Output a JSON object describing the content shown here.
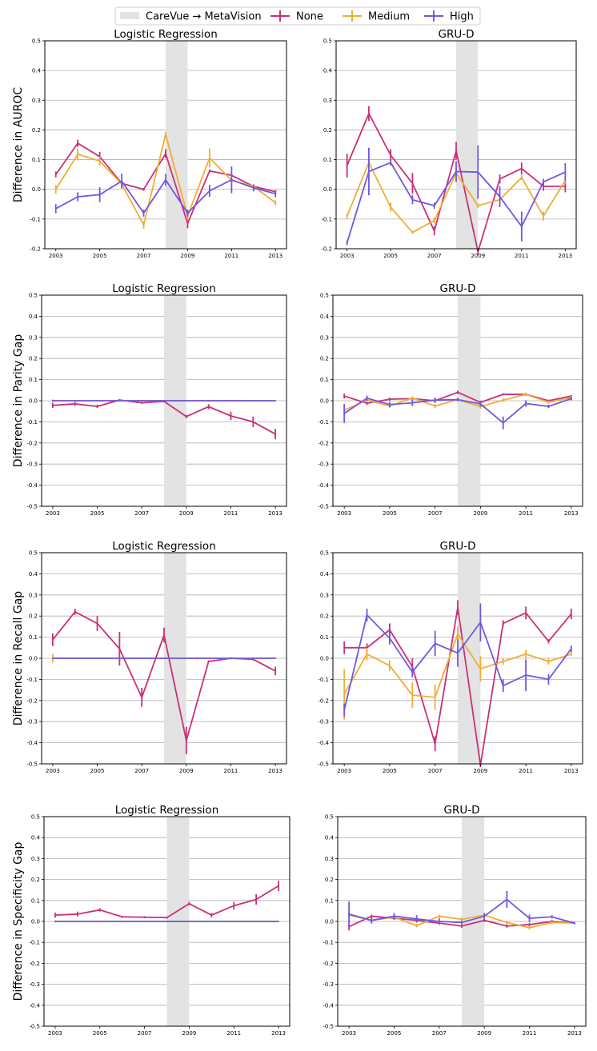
{
  "legend": {
    "items": [
      {
        "label": "CareVue → MetaVision",
        "kind": "patch",
        "color": "#e3e3e3"
      },
      {
        "label": "None",
        "kind": "line",
        "color": "#c9307a"
      },
      {
        "label": "Medium",
        "kind": "line",
        "color": "#f0ad34"
      },
      {
        "label": "High",
        "kind": "line",
        "color": "#7058e0"
      }
    ]
  },
  "row_labels": [
    "Difference in AUROC",
    "Difference in Parity Gap",
    "Difference in Recall Gap",
    "Difference in Specificity Gap"
  ],
  "colors": {
    "None": "#c9307a",
    "Medium": "#f0ad34",
    "High": "#7058e0",
    "shade": "#e3e3e3",
    "grid": "#b0b0b0"
  },
  "chart_data": [
    {
      "type": "line",
      "title": "Logistic Regression",
      "ylabel": "Difference in AUROC",
      "x": [
        2003,
        2004,
        2005,
        2006,
        2007,
        2008,
        2009,
        2010,
        2011,
        2012,
        2013
      ],
      "xticks": [
        2003,
        2005,
        2007,
        2009,
        2011,
        2013
      ],
      "yticks": [
        -0.2,
        -0.1,
        0.0,
        0.1,
        0.2,
        0.3,
        0.4,
        0.5
      ],
      "ylim": [
        -0.2,
        0.5
      ],
      "xlim": [
        2002.5,
        2013.5
      ],
      "shaded": [
        2008,
        2009
      ],
      "grid": true,
      "series": [
        {
          "name": "None",
          "values": [
            0.05,
            0.155,
            0.11,
            0.02,
            0.0,
            0.12,
            -0.115,
            0.062,
            0.047,
            0.01,
            -0.008
          ],
          "err": [
            0.01,
            0.012,
            0.016,
            0.01,
            0.005,
            0.015,
            0.016,
            0.005,
            0.006,
            0.005,
            0.005
          ]
        },
        {
          "name": "Medium",
          "values": [
            0.0,
            0.118,
            0.095,
            0.018,
            -0.12,
            0.185,
            -0.09,
            0.106,
            0.03,
            0.01,
            -0.045
          ],
          "err": [
            0.015,
            0.02,
            0.015,
            0.015,
            0.012,
            0.008,
            0.015,
            0.032,
            0.01,
            0.005,
            0.008
          ]
        },
        {
          "name": "High",
          "values": [
            -0.065,
            -0.025,
            -0.018,
            0.028,
            -0.08,
            0.032,
            -0.08,
            -0.005,
            0.032,
            0.005,
            -0.015
          ],
          "err": [
            0.015,
            0.015,
            0.025,
            0.025,
            0.012,
            0.02,
            0.012,
            0.02,
            0.045,
            0.012,
            0.012
          ]
        }
      ]
    },
    {
      "type": "line",
      "title": "GRU-D",
      "ylabel": "",
      "x": [
        2003,
        2004,
        2005,
        2006,
        2007,
        2008,
        2009,
        2010,
        2011,
        2012,
        2013
      ],
      "xticks": [
        2003,
        2005,
        2007,
        2009,
        2011,
        2013
      ],
      "yticks": [
        -0.2,
        -0.1,
        0.0,
        0.1,
        0.2,
        0.3,
        0.4,
        0.5
      ],
      "ylim": [
        -0.2,
        0.5
      ],
      "xlim": [
        2002.5,
        2013.5
      ],
      "shaded": [
        2008,
        2009
      ],
      "grid": true,
      "series": [
        {
          "name": "None",
          "values": [
            0.08,
            0.255,
            0.115,
            0.02,
            -0.14,
            0.13,
            -0.21,
            0.035,
            0.07,
            0.01,
            0.01
          ],
          "err": [
            0.04,
            0.025,
            0.02,
            0.035,
            0.015,
            0.03,
            0.01,
            0.015,
            0.02,
            0.015,
            0.02
          ]
        },
        {
          "name": "Medium",
          "values": [
            -0.09,
            0.09,
            -0.06,
            -0.145,
            -0.105,
            0.055,
            -0.055,
            -0.035,
            0.04,
            -0.09,
            0.03
          ],
          "err": [
            0.008,
            0.01,
            0.015,
            0.005,
            0.01,
            0.015,
            0.008,
            0.008,
            0.008,
            0.015,
            0.01
          ]
        },
        {
          "name": "High",
          "values": [
            -0.18,
            0.06,
            0.09,
            -0.035,
            -0.055,
            0.06,
            0.058,
            -0.025,
            -0.125,
            0.025,
            0.058
          ],
          "err": [
            0.008,
            0.08,
            0.01,
            0.015,
            0.01,
            0.035,
            0.09,
            0.035,
            0.05,
            0.01,
            0.03
          ]
        }
      ]
    },
    {
      "type": "line",
      "title": "Logistic Regression",
      "ylabel": "Difference in Parity Gap",
      "x": [
        2003,
        2004,
        2005,
        2006,
        2007,
        2008,
        2009,
        2010,
        2011,
        2012,
        2013
      ],
      "xticks": [
        2003,
        2005,
        2007,
        2009,
        2011,
        2013
      ],
      "yticks": [
        -0.5,
        -0.4,
        -0.3,
        -0.2,
        -0.1,
        0.0,
        0.1,
        0.2,
        0.3,
        0.4,
        0.5
      ],
      "ylim": [
        -0.5,
        0.5
      ],
      "xlim": [
        2002.5,
        2013.5
      ],
      "shaded": [
        2008,
        2009
      ],
      "grid": true,
      "series": [
        {
          "name": "None",
          "values": [
            -0.022,
            -0.015,
            -0.027,
            0.003,
            -0.01,
            -0.003,
            -0.075,
            -0.028,
            -0.072,
            -0.1,
            -0.158
          ],
          "err": [
            0.012,
            0.01,
            0.008,
            0.005,
            0.005,
            0.005,
            0.008,
            0.012,
            0.02,
            0.025,
            0.025
          ]
        },
        {
          "name": "Medium",
          "values": [
            0,
            0,
            0,
            0,
            0,
            0,
            0,
            0,
            0,
            0,
            0
          ],
          "err": [
            0,
            0,
            0,
            0,
            0,
            0,
            0,
            0,
            0,
            0,
            0
          ]
        },
        {
          "name": "High",
          "values": [
            0,
            0,
            0,
            0,
            0,
            0,
            0,
            0,
            0,
            0,
            0
          ],
          "err": [
            0.005,
            0,
            0,
            0.004,
            0,
            0,
            0,
            0,
            0,
            0,
            0
          ]
        }
      ]
    },
    {
      "type": "line",
      "title": "GRU-D",
      "ylabel": "",
      "x": [
        2003,
        2004,
        2005,
        2006,
        2007,
        2008,
        2009,
        2010,
        2011,
        2012,
        2013
      ],
      "xticks": [
        2003,
        2005,
        2007,
        2009,
        2011,
        2013
      ],
      "yticks": [
        -0.5,
        -0.4,
        -0.3,
        -0.2,
        -0.1,
        0.0,
        0.1,
        0.2,
        0.3,
        0.4,
        0.5
      ],
      "ylim": [
        -0.5,
        0.5
      ],
      "xlim": [
        2002.5,
        2013.5
      ],
      "shaded": [
        2008,
        2009
      ],
      "grid": true,
      "series": [
        {
          "name": "None",
          "values": [
            0.022,
            -0.012,
            0.007,
            0.01,
            0.0,
            0.04,
            -0.008,
            0.03,
            0.03,
            0.0,
            0.022
          ],
          "err": [
            0.012,
            0.008,
            0.008,
            0.006,
            0.01,
            0.008,
            0.008,
            0.005,
            0.005,
            0.005,
            0.005
          ]
        },
        {
          "name": "Medium",
          "values": [
            -0.045,
            0.003,
            -0.025,
            0.013,
            -0.025,
            0.005,
            -0.028,
            0.003,
            0.03,
            -0.007,
            0.015
          ],
          "err": [
            0.015,
            0.01,
            0.01,
            0.008,
            0.01,
            0.008,
            0.01,
            0.008,
            0.008,
            0.008,
            0.008
          ]
        },
        {
          "name": "High",
          "values": [
            -0.06,
            0.012,
            -0.018,
            -0.01,
            0.003,
            0.005,
            -0.015,
            -0.105,
            -0.013,
            -0.027,
            0.01
          ],
          "err": [
            0.045,
            0.012,
            0.012,
            0.015,
            0.012,
            0.008,
            0.012,
            0.03,
            0.015,
            0.008,
            0.008
          ]
        }
      ]
    },
    {
      "type": "line",
      "title": "Logistic Regression",
      "ylabel": "Difference in Recall Gap",
      "x": [
        2003,
        2004,
        2005,
        2006,
        2007,
        2008,
        2009,
        2010,
        2011,
        2012,
        2013
      ],
      "xticks": [
        2003,
        2005,
        2007,
        2009,
        2011,
        2013
      ],
      "yticks": [
        -0.5,
        -0.4,
        -0.3,
        -0.2,
        -0.1,
        0.0,
        0.1,
        0.2,
        0.3,
        0.4,
        0.5
      ],
      "ylim": [
        -0.5,
        0.5
      ],
      "xlim": [
        2002.5,
        2013.5
      ],
      "shaded": [
        2008,
        2009
      ],
      "grid": true,
      "series": [
        {
          "name": "None",
          "values": [
            0.088,
            0.22,
            0.165,
            0.045,
            -0.185,
            0.11,
            -0.39,
            -0.015,
            0.0,
            -0.005,
            -0.06
          ],
          "err": [
            0.03,
            0.015,
            0.035,
            0.08,
            0.045,
            0.035,
            0.065,
            0.005,
            0.005,
            0.005,
            0.02
          ]
        },
        {
          "name": "Medium",
          "values": [
            0,
            0,
            0,
            0,
            0,
            0,
            0,
            0,
            0,
            0,
            0
          ],
          "err": [
            0.02,
            0,
            0,
            0,
            0,
            0,
            0,
            0,
            0,
            0,
            0
          ]
        },
        {
          "name": "High",
          "values": [
            0,
            0,
            0,
            0,
            0,
            0,
            0,
            0,
            0,
            0,
            0
          ],
          "err": [
            0,
            0,
            0,
            0,
            0,
            0,
            0,
            0,
            0,
            0,
            0
          ]
        }
      ]
    },
    {
      "type": "line",
      "title": "GRU-D",
      "ylabel": "",
      "x": [
        2003,
        2004,
        2005,
        2006,
        2007,
        2008,
        2009,
        2010,
        2011,
        2012,
        2013
      ],
      "xticks": [
        2003,
        2005,
        2007,
        2009,
        2011,
        2013
      ],
      "yticks": [
        -0.5,
        -0.4,
        -0.3,
        -0.2,
        -0.1,
        0.0,
        0.1,
        0.2,
        0.3,
        0.4,
        0.5
      ],
      "ylim": [
        -0.5,
        0.5
      ],
      "xlim": [
        2002.5,
        2013.5
      ],
      "shaded": [
        2008,
        2009
      ],
      "grid": true,
      "series": [
        {
          "name": "None",
          "values": [
            0.05,
            0.05,
            0.135,
            -0.04,
            -0.405,
            0.24,
            -0.505,
            0.165,
            0.215,
            0.08,
            0.21
          ],
          "err": [
            0.03,
            0.02,
            0.03,
            0.04,
            0.035,
            0.035,
            0.01,
            0.015,
            0.03,
            0.01,
            0.025
          ]
        },
        {
          "name": "Medium",
          "values": [
            -0.17,
            0.02,
            -0.035,
            -0.175,
            -0.185,
            0.115,
            -0.05,
            -0.015,
            0.02,
            -0.015,
            0.02
          ],
          "err": [
            0.12,
            0.03,
            0.025,
            0.06,
            0.06,
            0.035,
            0.06,
            0.015,
            0.02,
            0.015,
            0.01
          ]
        },
        {
          "name": "High",
          "values": [
            -0.245,
            0.205,
            0.095,
            -0.065,
            0.07,
            0.025,
            0.17,
            -0.13,
            -0.08,
            -0.1,
            0.045
          ],
          "err": [
            0.03,
            0.03,
            0.03,
            0.025,
            0.06,
            0.065,
            0.09,
            0.03,
            0.075,
            0.025,
            0.015
          ]
        }
      ]
    },
    {
      "type": "line",
      "title": "Logistic Regression",
      "ylabel": "Difference in Specificity Gap",
      "x": [
        2003,
        2004,
        2005,
        2006,
        2007,
        2008,
        2009,
        2010,
        2011,
        2012,
        2013
      ],
      "xticks": [
        2003,
        2005,
        2007,
        2009,
        2011,
        2013
      ],
      "yticks": [
        -0.5,
        -0.4,
        -0.3,
        -0.2,
        -0.1,
        0.0,
        0.1,
        0.2,
        0.3,
        0.4,
        0.5
      ],
      "ylim": [
        -0.5,
        0.5
      ],
      "xlim": [
        2002.5,
        2013.5
      ],
      "shaded": [
        2008,
        2009
      ],
      "grid": true,
      "series": [
        {
          "name": "None",
          "values": [
            0.03,
            0.035,
            0.055,
            0.022,
            0.02,
            0.018,
            0.085,
            0.03,
            0.075,
            0.105,
            0.17
          ],
          "err": [
            0.012,
            0.012,
            0.008,
            0.005,
            0.005,
            0.005,
            0.008,
            0.01,
            0.018,
            0.025,
            0.025
          ]
        },
        {
          "name": "Medium",
          "values": [
            0,
            0,
            0,
            0,
            0,
            0,
            0,
            0,
            0,
            0,
            0
          ],
          "err": [
            0.005,
            0,
            0,
            0,
            0,
            0,
            0,
            0,
            0,
            0,
            0
          ]
        },
        {
          "name": "High",
          "values": [
            0,
            0,
            0,
            0,
            0,
            0,
            0,
            0,
            0,
            0,
            0
          ],
          "err": [
            0,
            0,
            0,
            0,
            0,
            0,
            0,
            0,
            0,
            0,
            0
          ]
        }
      ]
    },
    {
      "type": "line",
      "title": "GRU-D",
      "ylabel": "",
      "x": [
        2003,
        2004,
        2005,
        2006,
        2007,
        2008,
        2009,
        2010,
        2011,
        2012,
        2013
      ],
      "xticks": [
        2003,
        2005,
        2007,
        2009,
        2011,
        2013
      ],
      "yticks": [
        -0.5,
        -0.4,
        -0.3,
        -0.2,
        -0.1,
        0.0,
        0.1,
        0.2,
        0.3,
        0.4,
        0.5
      ],
      "ylim": [
        -0.5,
        0.5
      ],
      "xlim": [
        2002.5,
        2013.5
      ],
      "shaded": [
        2008,
        2009
      ],
      "grid": true,
      "series": [
        {
          "name": "None",
          "values": [
            -0.025,
            0.025,
            0.015,
            0.005,
            -0.008,
            -0.022,
            0.005,
            -0.022,
            -0.015,
            0.0,
            -0.008
          ],
          "err": [
            0.018,
            0.008,
            0.008,
            0.008,
            0.008,
            0.008,
            0.008,
            0.008,
            0.008,
            0.008,
            0.005
          ]
        },
        {
          "name": "Medium",
          "values": [
            0.03,
            0.005,
            0.02,
            -0.02,
            0.025,
            0.01,
            0.03,
            -0.005,
            -0.03,
            -0.005,
            -0.008
          ],
          "err": [
            0.01,
            0.008,
            0.008,
            0.008,
            0.008,
            0.008,
            0.008,
            0.008,
            0.008,
            0.008,
            0.005
          ]
        },
        {
          "name": "High",
          "values": [
            0.035,
            0.005,
            0.025,
            0.012,
            0.0,
            -0.005,
            0.025,
            0.105,
            0.015,
            0.022,
            -0.008
          ],
          "err": [
            0.06,
            0.015,
            0.015,
            0.018,
            0.015,
            0.008,
            0.015,
            0.04,
            0.018,
            0.008,
            0.005
          ]
        }
      ]
    }
  ]
}
